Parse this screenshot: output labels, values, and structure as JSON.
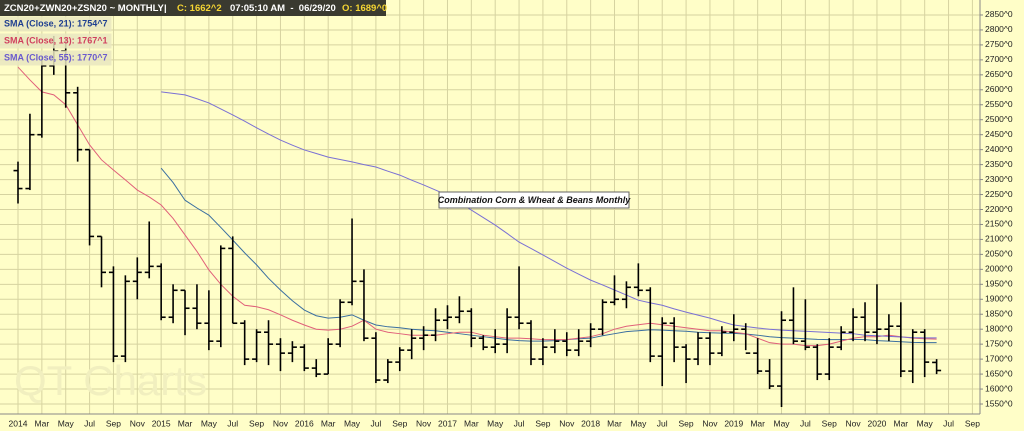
{
  "chart_data": {
    "type": "ohlc",
    "header": {
      "symbol": "ZCN20+ZWN20+ZSN20 ~ MONTHLY",
      "separator": "|",
      "close": "C: 1662^2",
      "timestamp": "07:05:10 AM  -  06/29/20",
      "open": "O: 1689^0"
    },
    "annotation": "Combination Corn & Wheat & Beans Monthly",
    "watermark": "QT Charts",
    "categories": [
      "2014",
      null,
      "Mar",
      null,
      "May",
      null,
      "Jul",
      null,
      "Sep",
      null,
      "Nov",
      null,
      "2015",
      null,
      "Mar",
      null,
      "May",
      null,
      "Jul",
      null,
      "Sep",
      null,
      "Nov",
      null,
      "2016",
      null,
      "Mar",
      null,
      "May",
      null,
      "Jul",
      null,
      "Sep",
      null,
      "Nov",
      null,
      "2017",
      null,
      "Mar",
      null,
      "May",
      null,
      "Jul",
      null,
      "Sep",
      null,
      "Nov",
      null,
      "2018",
      null,
      "Mar",
      null,
      "May",
      null,
      "Jul",
      null,
      "Sep",
      null,
      "Nov",
      null,
      "2019",
      null,
      "Mar",
      null,
      "May",
      null,
      "Jul",
      null,
      "Sep",
      null,
      "Nov",
      null,
      "2020",
      null,
      "Mar",
      null,
      "May",
      null,
      "Jul",
      null,
      "Sep"
    ],
    "ohlc": {
      "color": "#000000",
      "open": [
        2330,
        2270,
        2450,
        2680,
        2730,
        2590,
        2400,
        2110,
        1990,
        1710,
        1960,
        1990,
        2010,
        1840,
        1930,
        1870,
        1820,
        1760,
        2070,
        1820,
        1700,
        1790,
        1750,
        1720,
        1740,
        1670,
        1650,
        1750,
        1890,
        1960,
        1770,
        1630,
        1690,
        1730,
        1770,
        1780,
        1830,
        1840,
        1860,
        1770,
        1740,
        1750,
        1840,
        1820,
        1700,
        1740,
        1760,
        1730,
        1760,
        1800,
        1890,
        1900,
        1940,
        1930,
        1710,
        1820,
        1740,
        1700,
        1770,
        1720,
        1790,
        1800,
        1720,
        1660,
        1610,
        1830,
        1760,
        1740,
        1650,
        1740,
        1790,
        1840,
        1790,
        1800,
        1810,
        1660,
        1790,
        1689,
        null,
        null,
        null
      ],
      "high": [
        2360,
        2520,
        2710,
        2780,
        2770,
        2610,
        2400,
        2110,
        2010,
        1980,
        2040,
        2160,
        2020,
        1950,
        1930,
        1950,
        1930,
        2080,
        2110,
        1830,
        1800,
        1830,
        1770,
        1760,
        1750,
        1700,
        1770,
        1900,
        2170,
        2000,
        1790,
        1700,
        1740,
        1800,
        1810,
        1870,
        1880,
        1910,
        1870,
        1780,
        1800,
        1870,
        2010,
        1830,
        1770,
        1800,
        1790,
        1800,
        1820,
        1900,
        1980,
        1960,
        2020,
        1940,
        1840,
        1840,
        1750,
        1790,
        1790,
        1810,
        1850,
        1820,
        1770,
        1700,
        1860,
        1940,
        1900,
        1750,
        1770,
        1810,
        1870,
        1890,
        1950,
        1850,
        1890,
        1800,
        1800,
        1700,
        null,
        null,
        null
      ],
      "low": [
        2220,
        2265,
        2440,
        2650,
        2540,
        2360,
        2080,
        1940,
        1690,
        1690,
        1900,
        1970,
        1830,
        1820,
        1780,
        1800,
        1730,
        1740,
        1820,
        1680,
        1690,
        1680,
        1660,
        1690,
        1660,
        1640,
        1650,
        1740,
        1880,
        1760,
        1620,
        1620,
        1660,
        1700,
        1730,
        1760,
        1800,
        1820,
        1740,
        1730,
        1720,
        1720,
        1800,
        1680,
        1680,
        1720,
        1710,
        1710,
        1740,
        1780,
        1880,
        1870,
        1910,
        1690,
        1610,
        1690,
        1620,
        1680,
        1680,
        1710,
        1760,
        1730,
        1650,
        1600,
        1540,
        1750,
        1730,
        1630,
        1630,
        1730,
        1760,
        1760,
        1750,
        1760,
        1640,
        1620,
        1640,
        1650,
        null,
        null,
        null
      ],
      "close": [
        2270,
        2450,
        2680,
        2730,
        2590,
        2400,
        2110,
        1990,
        1710,
        1960,
        1990,
        2010,
        1840,
        1930,
        1870,
        1820,
        1760,
        2070,
        1820,
        1700,
        1790,
        1750,
        1720,
        1740,
        1670,
        1650,
        1750,
        1890,
        1960,
        1770,
        1630,
        1690,
        1730,
        1770,
        1780,
        1830,
        1840,
        1860,
        1770,
        1740,
        1750,
        1840,
        1820,
        1700,
        1740,
        1760,
        1730,
        1760,
        1800,
        1890,
        1900,
        1940,
        1930,
        1710,
        1820,
        1740,
        1700,
        1770,
        1720,
        1790,
        1800,
        1720,
        1660,
        1610,
        1830,
        1760,
        1740,
        1650,
        1740,
        1790,
        1840,
        1790,
        1800,
        1810,
        1660,
        1790,
        1690,
        1662,
        null,
        null,
        null
      ]
    },
    "series": [
      {
        "name": "SMA (Close, 21): 1754^7",
        "color": "#3b6fa0",
        "label_color": "#1f3f90",
        "values": [
          null,
          null,
          null,
          null,
          null,
          null,
          null,
          null,
          null,
          null,
          null,
          null,
          2338,
          2290,
          2231,
          2205,
          2181,
          2140,
          2098,
          2055,
          2015,
          1970,
          1931,
          1895,
          1864,
          1845,
          1837,
          1840,
          1848,
          1830,
          1814,
          1808,
          1805,
          1800,
          1797,
          1795,
          1790,
          1785,
          1780,
          1775,
          1770,
          1765,
          1762,
          1760,
          1760,
          1762,
          1765,
          1768,
          1770,
          1778,
          1785,
          1792,
          1795,
          1798,
          1797,
          1795,
          1793,
          1790,
          1788,
          1787,
          1786,
          1784,
          1780,
          1775,
          1772,
          1770,
          1768,
          1766,
          1765,
          1765,
          1766,
          1765,
          1762,
          1760,
          1758,
          1756,
          1755,
          1755,
          null,
          null,
          null
        ]
      },
      {
        "name": "SMA (Close, 13): 1767^1",
        "color": "#e0607a",
        "label_color": "#d0405e",
        "values": [
          2676,
          2633,
          2593,
          2583,
          2550,
          2483,
          2416,
          2366,
          2332,
          2299,
          2265,
          2242,
          2215,
          2170,
          2115,
          2060,
          1998,
          1950,
          1910,
          1880,
          1875,
          1865,
          1848,
          1830,
          1814,
          1800,
          1797,
          1800,
          1810,
          1830,
          1800,
          1790,
          1785,
          1780,
          1780,
          1780,
          1785,
          1790,
          1790,
          1780,
          1775,
          1770,
          1770,
          1768,
          1765,
          1765,
          1765,
          1770,
          1775,
          1785,
          1800,
          1810,
          1815,
          1820,
          1815,
          1810,
          1805,
          1800,
          1795,
          1795,
          1790,
          1785,
          1770,
          1755,
          1750,
          1750,
          1745,
          1745,
          1750,
          1760,
          1770,
          1775,
          1775,
          1780,
          1775,
          1770,
          1768,
          1767,
          null,
          null,
          null
        ]
      },
      {
        "name": "SMA (Close, 55): 1770^7",
        "color": "#7a70d4",
        "label_color": "#6a5acd",
        "values": [
          null,
          null,
          null,
          null,
          null,
          null,
          null,
          null,
          null,
          null,
          null,
          null,
          2593,
          2588,
          2583,
          2570,
          2556,
          2536,
          2516,
          2495,
          2473,
          2452,
          2432,
          2415,
          2399,
          2387,
          2375,
          2367,
          2359,
          2350,
          2342,
          2328,
          2315,
          2298,
          2282,
          2265,
          2248,
          2223,
          2198,
          2173,
          2148,
          2120,
          2091,
          2070,
          2048,
          2026,
          2004,
          1984,
          1964,
          1948,
          1931,
          1914,
          1897,
          1888,
          1880,
          1868,
          1857,
          1847,
          1837,
          1825,
          1814,
          1809,
          1804,
          1800,
          1797,
          1795,
          1793,
          1791,
          1789,
          1787,
          1785,
          1780,
          1778,
          1776,
          1774,
          1772,
          1771,
          1771,
          null,
          null,
          null
        ]
      }
    ],
    "ylim": [
      1525,
      2875
    ],
    "yticks": [
      {
        "value": 1550,
        "label": "1550^0"
      },
      {
        "value": 1600,
        "label": "1600^0"
      },
      {
        "value": 1650,
        "label": "1650^0"
      },
      {
        "value": 1700,
        "label": "1700^0"
      },
      {
        "value": 1750,
        "label": "1750^0"
      },
      {
        "value": 1800,
        "label": "1800^0"
      },
      {
        "value": 1850,
        "label": "1850^0"
      },
      {
        "value": 1900,
        "label": "1900^0"
      },
      {
        "value": 1950,
        "label": "1950^0"
      },
      {
        "value": 2000,
        "label": "2000^0"
      },
      {
        "value": 2050,
        "label": "2050^0"
      },
      {
        "value": 2100,
        "label": "2100^0"
      },
      {
        "value": 2150,
        "label": "2150^0"
      },
      {
        "value": 2200,
        "label": "2200^0"
      },
      {
        "value": 2250,
        "label": "2250^0"
      },
      {
        "value": 2300,
        "label": "2300^0"
      },
      {
        "value": 2350,
        "label": "2350^0"
      },
      {
        "value": 2400,
        "label": "2400^0"
      },
      {
        "value": 2450,
        "label": "2450^0"
      },
      {
        "value": 2500,
        "label": "2500^0"
      },
      {
        "value": 2550,
        "label": "2550^0"
      },
      {
        "value": 2600,
        "label": "2600^0"
      },
      {
        "value": 2650,
        "label": "2650^0"
      },
      {
        "value": 2700,
        "label": "2700^0"
      },
      {
        "value": 2750,
        "label": "2750^0"
      },
      {
        "value": 2800,
        "label": "2800^0"
      },
      {
        "value": 2850,
        "label": "2850^0"
      }
    ],
    "grid": true
  }
}
